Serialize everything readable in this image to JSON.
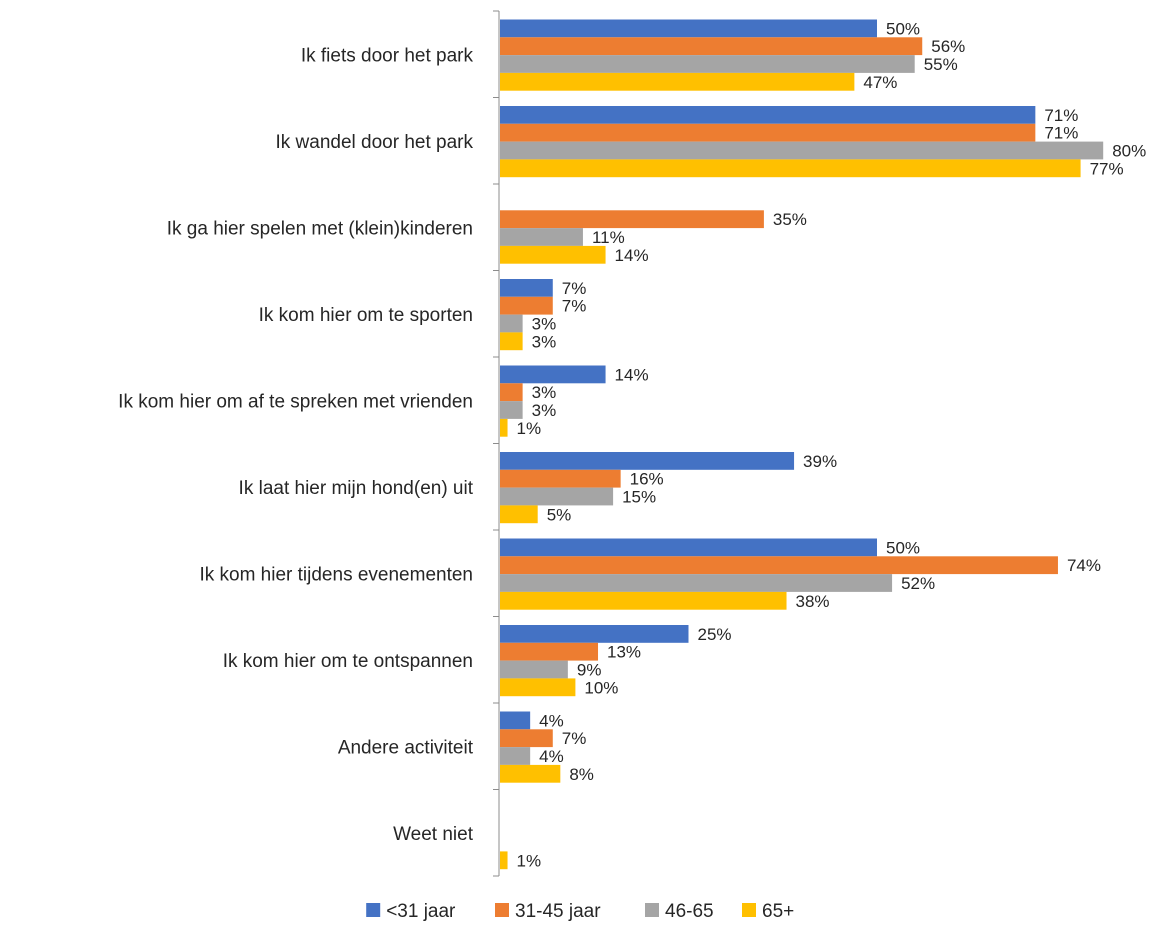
{
  "chart_data": {
    "type": "bar",
    "orientation": "horizontal",
    "categories": [
      "Ik fiets door het park",
      "Ik wandel door het park",
      "Ik ga hier spelen met (klein)kinderen",
      "Ik kom hier om te sporten",
      "Ik kom hier om af te spreken met vrienden",
      "Ik laat hier mijn hond(en) uit",
      "Ik kom hier tijdens evenementen",
      "Ik kom hier om te ontspannen",
      "Andere activiteit",
      "Weet niet"
    ],
    "series": [
      {
        "name": "<31 jaar",
        "color": "#4472C4",
        "values": [
          50,
          71,
          null,
          7,
          14,
          39,
          50,
          25,
          4,
          null
        ]
      },
      {
        "name": "31-45 jaar",
        "color": "#ED7D31",
        "values": [
          56,
          71,
          35,
          7,
          3,
          16,
          74,
          13,
          7,
          null
        ]
      },
      {
        "name": "46-65",
        "color": "#A5A5A5",
        "values": [
          55,
          80,
          11,
          3,
          3,
          15,
          52,
          9,
          4,
          null
        ]
      },
      {
        "name": "65+",
        "color": "#FFC000",
        "values": [
          47,
          77,
          14,
          3,
          1,
          5,
          38,
          10,
          8,
          1
        ]
      }
    ],
    "value_suffix": "%",
    "xlim": [
      0,
      80
    ],
    "grid": false,
    "legend_position": "bottom",
    "title": "",
    "xlabel": "",
    "ylabel": ""
  }
}
